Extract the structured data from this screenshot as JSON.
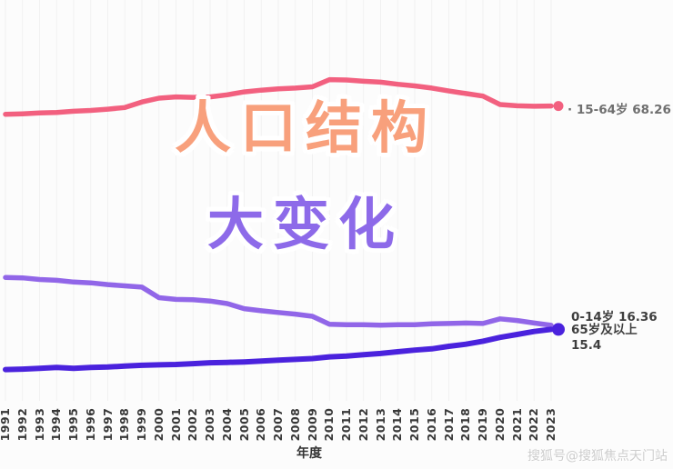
{
  "title": {
    "line1": "人口结构",
    "line2": "大变化",
    "line1_color": "#f8a07c",
    "line2_color": "#8d6ae9"
  },
  "axis": {
    "x_title": "年度"
  },
  "watermark": "搜狐号@搜狐焦点天门站",
  "chart_data": {
    "type": "line",
    "title": "人口结构大变化",
    "xlabel": "年度",
    "ylabel": "",
    "grid": "faint-vertical",
    "legend_position": "end-of-line-labels",
    "x": [
      1991,
      1992,
      1993,
      1994,
      1995,
      1996,
      1997,
      1998,
      1999,
      2000,
      2001,
      2002,
      2003,
      2004,
      2005,
      2006,
      2007,
      2008,
      2009,
      2010,
      2011,
      2012,
      2013,
      2014,
      2015,
      2016,
      2017,
      2018,
      2019,
      2020,
      2021,
      2022,
      2023
    ],
    "series": [
      {
        "name": "15-64岁",
        "color": "#f2607f",
        "end_value": 68.26,
        "end_label": "· 15-64岁 68.26",
        "has_end_dot": true,
        "dot_radius": 5.5,
        "values": [
          66.3,
          66.4,
          66.6,
          66.7,
          67.0,
          67.2,
          67.5,
          67.9,
          69.2,
          70.1,
          70.4,
          70.3,
          70.4,
          70.9,
          71.6,
          72.0,
          72.3,
          72.5,
          72.8,
          74.5,
          74.4,
          74.1,
          73.9,
          73.4,
          73.0,
          72.5,
          71.8,
          71.2,
          70.6,
          68.6,
          68.3,
          68.2,
          68.26
        ]
      },
      {
        "name": "0-14岁",
        "color": "#9166e8",
        "end_value": 16.36,
        "end_label": "0-14岁 16.36",
        "has_end_dot": false,
        "values": [
          27.7,
          27.6,
          27.2,
          27.0,
          26.6,
          26.4,
          26.0,
          25.7,
          25.4,
          22.9,
          22.5,
          22.4,
          22.1,
          21.5,
          20.3,
          19.8,
          19.4,
          19.0,
          18.5,
          16.6,
          16.5,
          16.5,
          16.4,
          16.5,
          16.5,
          16.7,
          16.8,
          16.9,
          16.8,
          17.9,
          17.5,
          16.9,
          16.36
        ]
      },
      {
        "name": "65岁及以上",
        "color": "#4a22dd",
        "end_value": 15.4,
        "end_label_line1": "65岁及以上",
        "end_label_line2": "15.4",
        "has_end_dot": true,
        "dot_radius": 7,
        "values": [
          5.9,
          6.0,
          6.2,
          6.4,
          6.2,
          6.4,
          6.5,
          6.7,
          6.9,
          7.0,
          7.1,
          7.3,
          7.5,
          7.6,
          7.7,
          7.9,
          8.1,
          8.3,
          8.5,
          8.9,
          9.1,
          9.4,
          9.7,
          10.1,
          10.5,
          10.8,
          11.4,
          11.9,
          12.6,
          13.5,
          14.2,
          14.9,
          15.4
        ]
      }
    ]
  }
}
